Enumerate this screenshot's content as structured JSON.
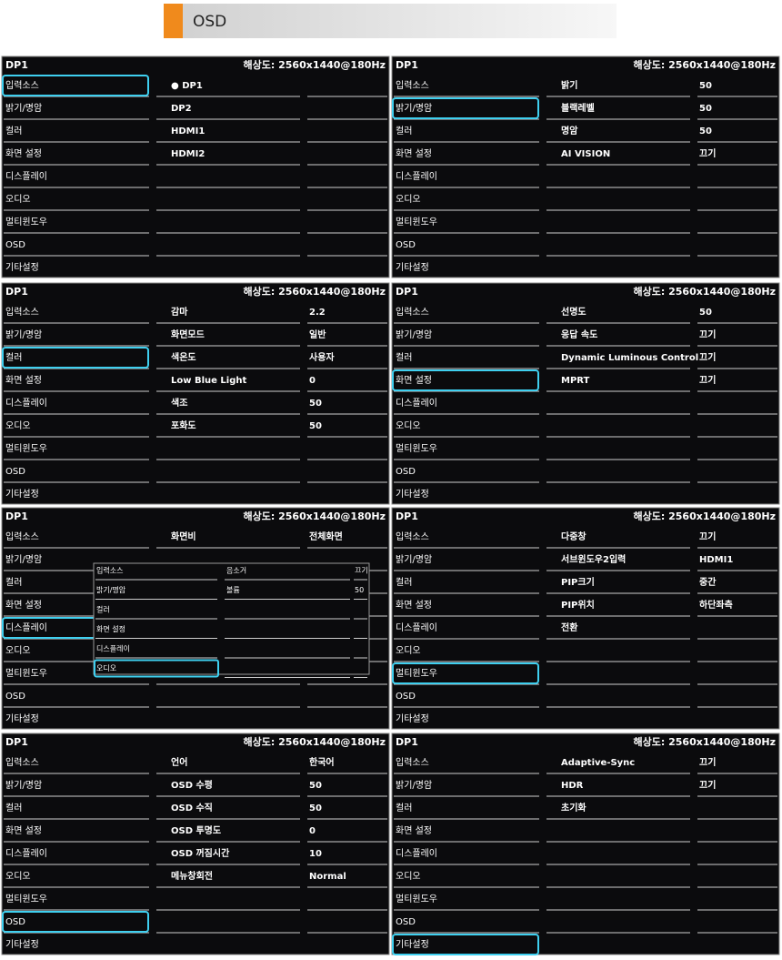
{
  "header": {
    "title": "OSD"
  },
  "panels": [
    {
      "source": "DP1",
      "resolution": "해상도: 2560x1440@180Hz",
      "selected": 0,
      "menu": [
        "입력소스",
        "밝기/명암",
        "컬러",
        "화면 설정",
        "디스플레이",
        "오디오",
        "멀티윈도우",
        "OSD",
        "기타설정"
      ],
      "items": [
        {
          "label": "● DP1"
        },
        {
          "label": "DP2"
        },
        {
          "label": "HDMI1"
        },
        {
          "label": "HDMI2"
        }
      ]
    },
    {
      "source": "DP1",
      "resolution": "해상도: 2560x1440@180Hz",
      "selected": 1,
      "menu": [
        "입력소스",
        "밝기/명암",
        "컬러",
        "화면 설정",
        "디스플레이",
        "오디오",
        "멀티윈도우",
        "OSD",
        "기타설정"
      ],
      "items": [
        {
          "label": "밝기",
          "value": "50"
        },
        {
          "label": "블랙레벨",
          "value": "50"
        },
        {
          "label": "명암",
          "value": "50"
        },
        {
          "label": "AI VISION",
          "value": "끄기"
        }
      ]
    },
    {
      "source": "DP1",
      "resolution": "해상도: 2560x1440@180Hz",
      "selected": 2,
      "menu": [
        "입력소스",
        "밝기/명암",
        "컬러",
        "화면 설정",
        "디스플레이",
        "오디오",
        "멀티윈도우",
        "OSD",
        "기타설정"
      ],
      "items": [
        {
          "label": "감마",
          "value": "2.2"
        },
        {
          "label": "화면모드",
          "value": "일반"
        },
        {
          "label": "색온도",
          "value": "사용자"
        },
        {
          "label": "Low Blue Light",
          "value": "0"
        },
        {
          "label": "색조",
          "value": "50"
        },
        {
          "label": "포화도",
          "value": "50"
        }
      ]
    },
    {
      "source": "DP1",
      "resolution": "해상도: 2560x1440@180Hz",
      "selected": 3,
      "menu": [
        "입력소스",
        "밝기/명암",
        "컬러",
        "화면 설정",
        "디스플레이",
        "오디오",
        "멀티윈도우",
        "OSD",
        "기타설정"
      ],
      "items": [
        {
          "label": "선명도",
          "value": "50"
        },
        {
          "label": "응답 속도",
          "value": "끄기"
        },
        {
          "label": "Dynamic Luminous Control",
          "value": "끄기"
        },
        {
          "label": "MPRT",
          "value": "끄기"
        }
      ]
    },
    {
      "source": "DP1",
      "resolution": "해상도: 2560x1440@180Hz",
      "selected": 4,
      "menu": [
        "입력소스",
        "밝기/명암",
        "컬러",
        "화면 설정",
        "디스플레이",
        "오디오",
        "멀티윈도우",
        "OSD",
        "기타설정"
      ],
      "items": [
        {
          "label": "화면비",
          "value": "전체화면"
        }
      ],
      "popup": {
        "selected": 5,
        "menu": [
          "입력소스",
          "밝기/명암",
          "컬러",
          "화면 설정",
          "디스플레이",
          "오디오"
        ],
        "items": [
          {
            "label": "음소거",
            "value": "끄기"
          },
          {
            "label": "볼륨",
            "value": "50"
          }
        ]
      }
    },
    {
      "source": "DP1",
      "resolution": "해상도: 2560x1440@180Hz",
      "selected": 6,
      "menu": [
        "입력소스",
        "밝기/명암",
        "컬러",
        "화면 설정",
        "디스플레이",
        "오디오",
        "멀티윈도우",
        "OSD",
        "기타설정"
      ],
      "items": [
        {
          "label": "다중창",
          "value": "끄기"
        },
        {
          "label": "서브윈도우2입력",
          "value": "HDMI1",
          "disabled": true
        },
        {
          "label": "PIP크기",
          "value": "중간",
          "disabled": true
        },
        {
          "label": "PIP위치",
          "value": "하단좌측",
          "disabled": true
        },
        {
          "label": "전환",
          "disabled": true
        }
      ]
    },
    {
      "source": "DP1",
      "resolution": "해상도: 2560x1440@180Hz",
      "selected": 7,
      "menu": [
        "입력소스",
        "밝기/명암",
        "컬러",
        "화면 설정",
        "디스플레이",
        "오디오",
        "멀티윈도우",
        "OSD",
        "기타설정"
      ],
      "items": [
        {
          "label": "언어",
          "value": "한국어"
        },
        {
          "label": "OSD 수평",
          "value": "50"
        },
        {
          "label": "OSD 수직",
          "value": "50"
        },
        {
          "label": "OSD 투명도",
          "value": "0"
        },
        {
          "label": "OSD 꺼짐시간",
          "value": "10"
        },
        {
          "label": "메뉴창회전",
          "value": "Normal"
        }
      ]
    },
    {
      "source": "DP1",
      "resolution": "해상도: 2560x1440@180Hz",
      "selected": 8,
      "menu": [
        "입력소스",
        "밝기/명암",
        "컬러",
        "화면 설정",
        "디스플레이",
        "오디오",
        "멀티윈도우",
        "OSD",
        "기타설정"
      ],
      "items": [
        {
          "label": "Adaptive-Sync",
          "value": "끄기"
        },
        {
          "label": "HDR",
          "value": "끄기"
        },
        {
          "label": "초기화"
        }
      ]
    }
  ]
}
